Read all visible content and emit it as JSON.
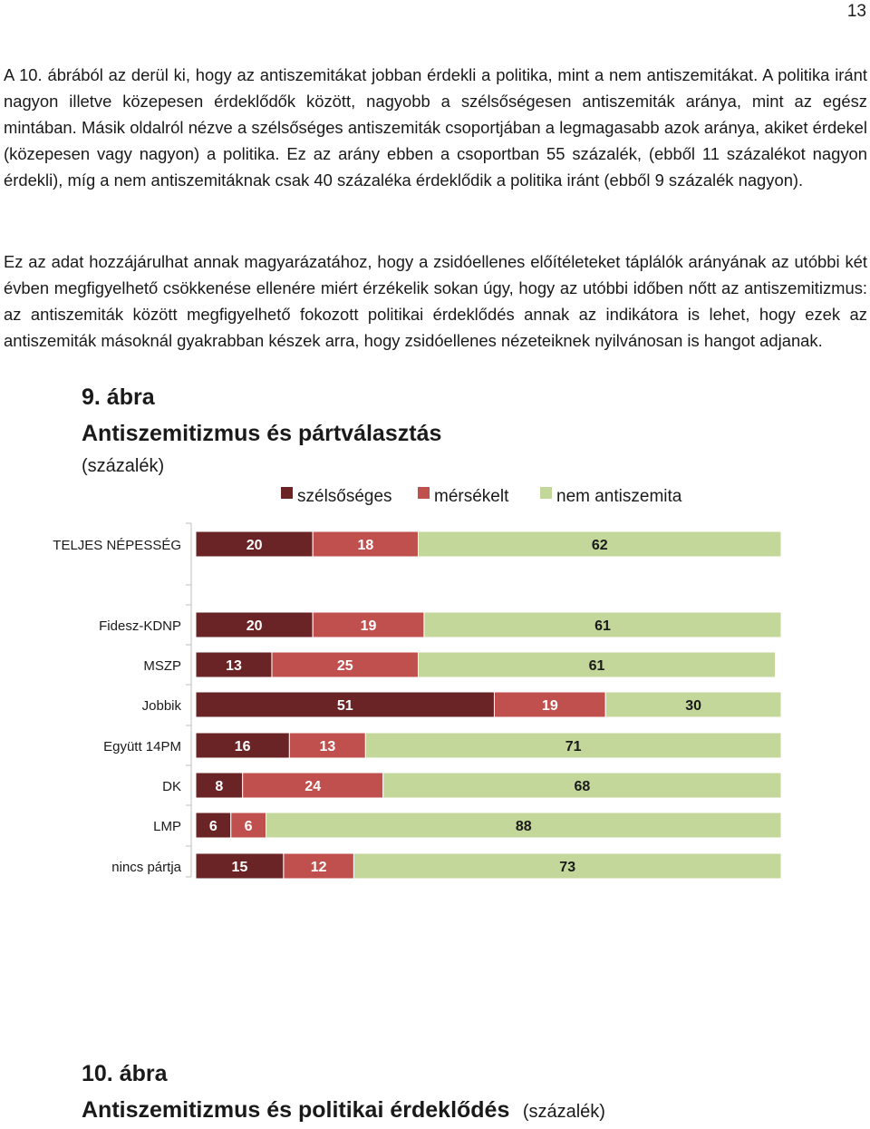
{
  "page": {
    "number": "13"
  },
  "paragraphs": {
    "p1": "A 10. ábrából az derül ki, hogy az antiszemitákat jobban érdekli a politika, mint a nem antiszemitákat. A politika iránt nagyon illetve közepesen érdeklődők között, nagyobb a szélsőségesen antiszemiták aránya, mint az egész mintában. Másik oldalról nézve a szélsőséges antiszemiták csoportjában a legmagasabb azok aránya, akiket érdekel (közepesen vagy nagyon) a politika. Ez az arány ebben a csoportban 55 százalék, (ebből 11 százalékot nagyon érdekli), míg a nem antiszemitáknak csak 40 százaléka érdeklődik a politika iránt (ebből 9 százalék nagyon).",
    "p2": "Ez az adat hozzájárulhat annak magyarázatához, hogy a zsidóellenes előítéleteket táplálók arányának az utóbbi két évben megfigyelhető csökkenése ellenére miért érzékelik sokan úgy, hogy az utóbbi időben nőtt az antiszemitizmus: az antiszemiták között megfigyelhető fokozott politikai érdeklődés annak az indikátora is lehet, hogy ezek az antiszemiták másoknál gyakrabban készek arra, hogy zsidóellenes nézeteiknek nyilvánosan is hangot adjanak."
  },
  "figure9": {
    "number": "9.  ábra",
    "title": "Antiszemitizmus  és  pártválasztás",
    "unit": "(százalék)"
  },
  "figure10": {
    "number": "10. ábra",
    "title": "Antiszemitizmus  és  politikai  érdeklődés",
    "unit": "(százalék)"
  },
  "chart_data": {
    "type": "bar",
    "orientation": "horizontal",
    "stacked": true,
    "xlim": [
      0,
      100
    ],
    "legend_position": "top",
    "categories": [
      "TELJES  NÉPESSÉG",
      "Fidesz-KDNP",
      "MSZP",
      "Jobbik",
      "Együtt  14PM",
      "DK",
      "LMP",
      "nincs  pártja"
    ],
    "series": [
      {
        "name": "szélsőséges",
        "color": "#6b2425",
        "values": [
          20,
          20,
          13,
          51,
          16,
          8,
          6,
          15
        ]
      },
      {
        "name": "mérsékelt",
        "color": "#c0504d",
        "values": [
          18,
          19,
          25,
          19,
          13,
          24,
          6,
          12
        ]
      },
      {
        "name": "nem antiszemita",
        "color": "#c4d79b",
        "values": [
          62,
          61,
          61,
          30,
          71,
          68,
          88,
          73
        ]
      }
    ]
  }
}
